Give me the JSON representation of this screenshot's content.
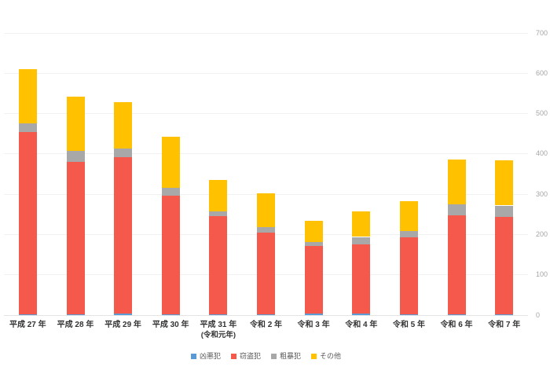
{
  "chart_data": {
    "type": "bar",
    "stacked": true,
    "title": "",
    "xlabel": "",
    "ylabel": "",
    "categories": [
      "平成 27 年",
      "平成 28 年",
      "平成 29 年",
      "平成 30 年",
      "平成 31 年\n(令和元年)",
      "令和 2 年",
      "令和 3 年",
      "令和 4 年",
      "令和 5 年",
      "令和 6 年",
      "令和 7 年"
    ],
    "series": [
      {
        "name": "凶悪犯",
        "color": "#5B9BD5",
        "values": [
          1,
          2,
          3,
          1,
          1,
          2,
          4,
          4,
          2,
          2,
          2
        ]
      },
      {
        "name": "窃盗犯",
        "color": "#F4594C",
        "values": [
          453,
          378,
          389,
          295,
          244,
          202,
          167,
          171,
          192,
          245,
          242
        ]
      },
      {
        "name": "粗暴犯",
        "color": "#A8A8A8",
        "values": [
          22,
          27,
          21,
          20,
          13,
          14,
          11,
          19,
          14,
          27,
          28
        ]
      },
      {
        "name": "その他",
        "color": "#FFC100",
        "values": [
          134,
          136,
          115,
          126,
          78,
          85,
          52,
          63,
          75,
          113,
          113
        ]
      }
    ],
    "totals": [
      610,
      543,
      528,
      442,
      336,
      303,
      234,
      257,
      283,
      387,
      385
    ],
    "ylim": [
      0,
      700
    ],
    "yticks": [
      0,
      100,
      200,
      300,
      400,
      500,
      600,
      700
    ],
    "y_axis_side": "right",
    "grid": true,
    "legend_position": "bottom"
  },
  "colors": {
    "background": "#ffffff",
    "gridline": "#f1f1f1",
    "axis_line": "#e4e4e4",
    "tick_label": "#a6a6a6",
    "category_label": "#333333",
    "legend_label": "#595959"
  }
}
